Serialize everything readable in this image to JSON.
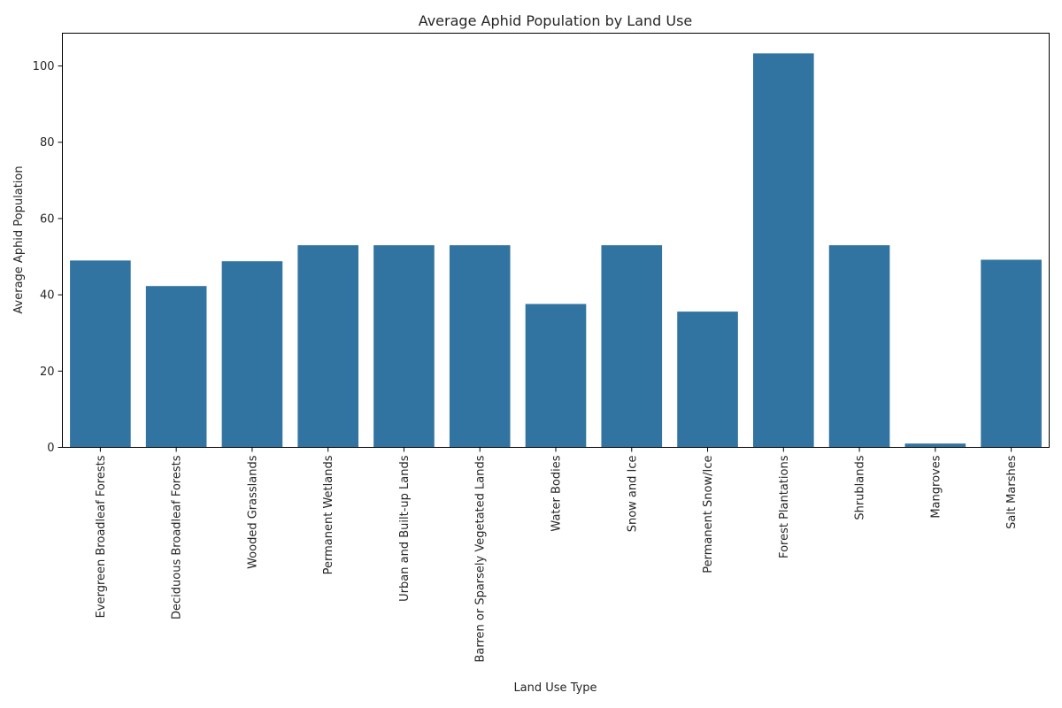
{
  "chart_data": {
    "type": "bar",
    "title": "Average Aphid Population by Land Use",
    "xlabel": "Land Use Type",
    "ylabel": "Average Aphid Population",
    "categories": [
      "Evergreen Broadleaf Forests",
      "Deciduous Broadleaf Forests",
      "Wooded Grasslands",
      "Permanent Wetlands",
      "Urban and Built-up Lands",
      "Barren or Sparsely Vegetated Lands",
      "Water Bodies",
      "Snow and Ice",
      "Permanent Snow/Ice",
      "Forest Plantations",
      "Shrublands",
      "Mangroves",
      "Salt Marshes"
    ],
    "values": [
      49.0,
      42.3,
      48.8,
      53.0,
      53.0,
      53.0,
      37.6,
      53.0,
      35.6,
      103.3,
      53.0,
      1.0,
      49.2
    ],
    "ylim": [
      0,
      108.6
    ],
    "yticks": [
      0,
      20,
      40,
      60,
      80,
      100
    ],
    "bar_color": "#3274a1",
    "grid": false,
    "legend": "none"
  }
}
